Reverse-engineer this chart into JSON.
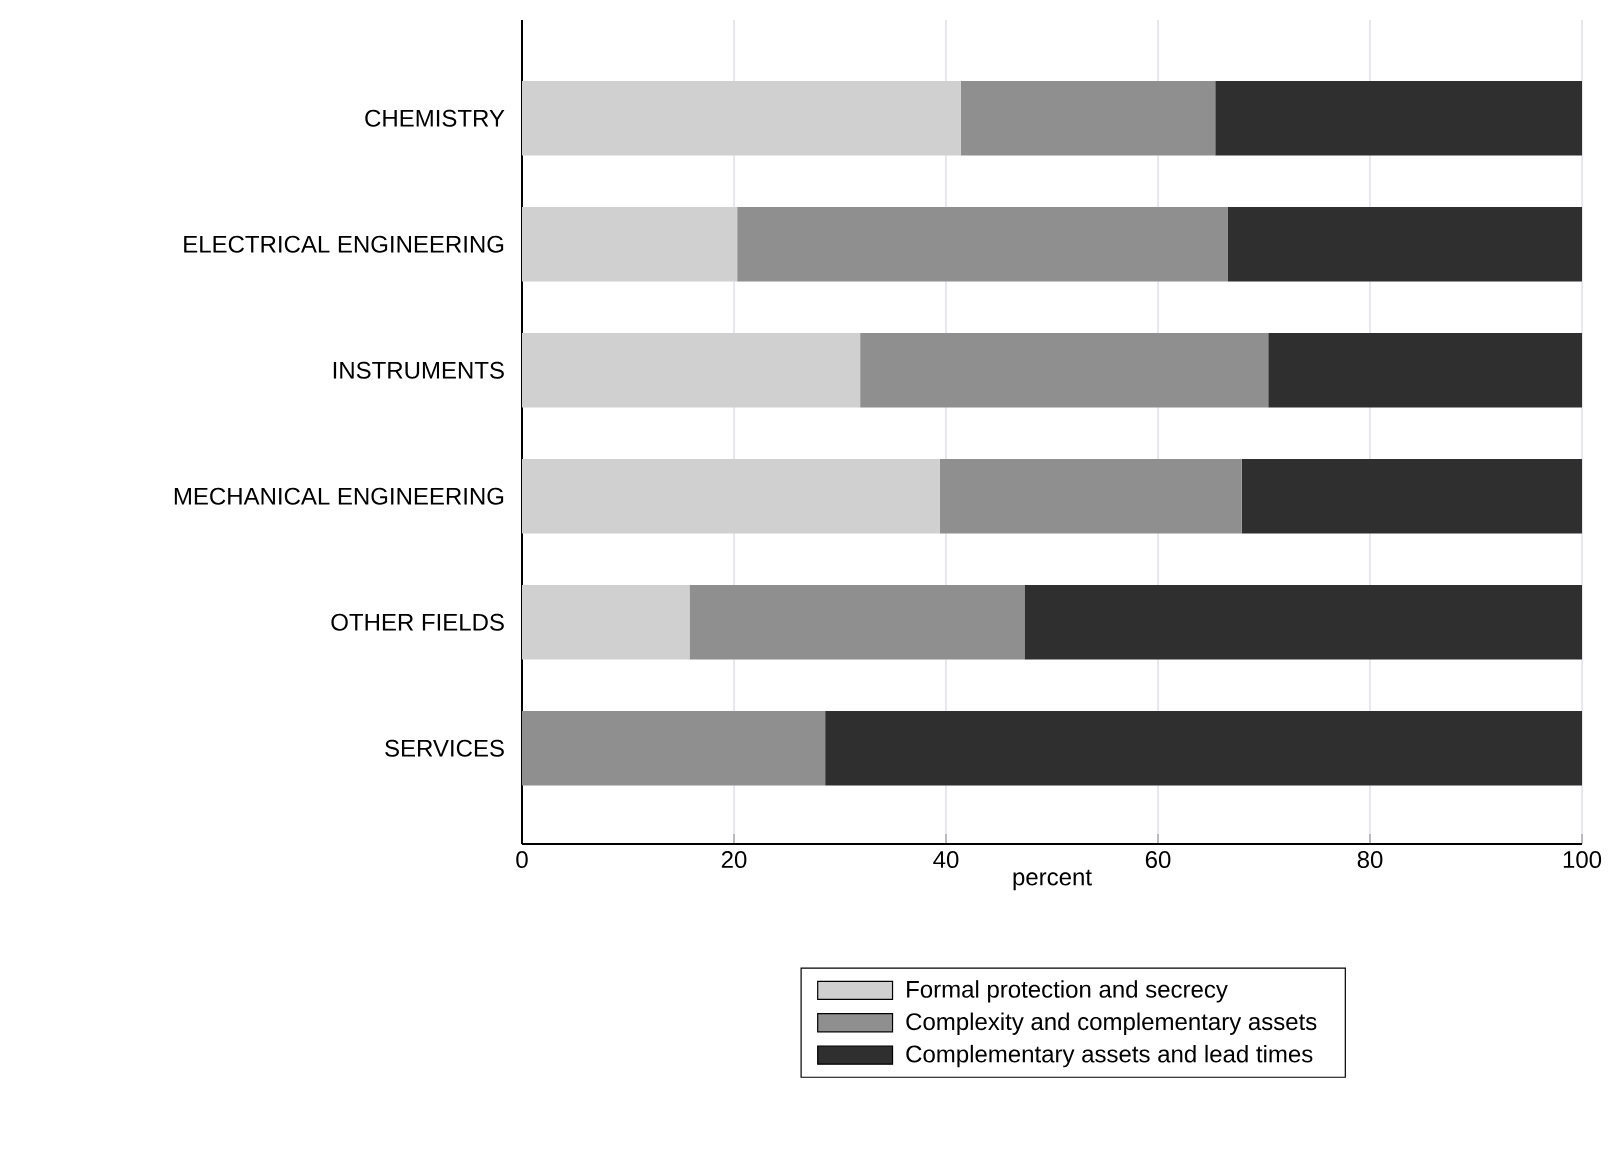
{
  "chart_data": {
    "type": "bar",
    "orientation": "horizontal",
    "stacked": true,
    "xlabel": "percent",
    "categories": [
      "CHEMISTRY",
      "ELECTRICAL ENGINEERING",
      "INSTRUMENTS",
      "MECHANICAL ENGINEERING",
      "OTHER FIELDS",
      "SERVICES"
    ],
    "series": [
      {
        "name": "Formal protection and secrecy",
        "color": "#d0d0d0",
        "values": [
          41.4,
          20.3,
          31.9,
          39.4,
          15.8,
          0
        ]
      },
      {
        "name": "Complexity and complementary assets",
        "color": "#8f8f8f",
        "values": [
          24.0,
          46.3,
          38.5,
          28.5,
          31.6,
          28.6
        ]
      },
      {
        "name": "Complementary assets and lead times",
        "color": "#2f2f2f",
        "values": [
          34.6,
          33.4,
          29.6,
          32.1,
          52.6,
          71.4
        ]
      }
    ],
    "xlim": [
      0,
      100
    ],
    "xticks": [
      0,
      20,
      40,
      60,
      80,
      100
    ],
    "grid": "x",
    "legend": "bottom"
  }
}
